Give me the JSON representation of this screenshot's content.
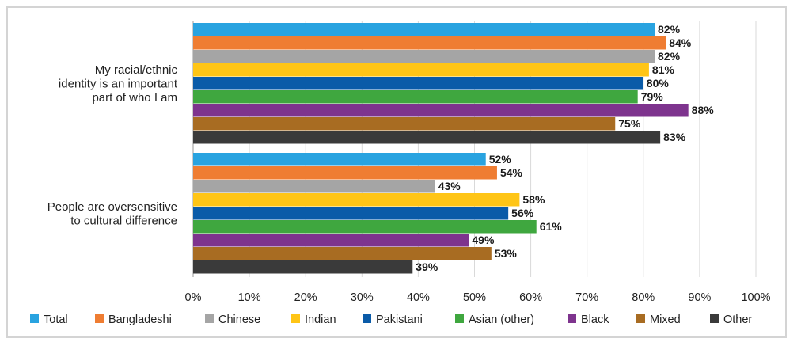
{
  "chart_data": {
    "type": "bar",
    "orientation": "horizontal",
    "categories": [
      [
        "My racial/ethnic",
        "identity is an important",
        "part of who I am"
      ],
      [
        "People are oversensitive",
        "to cultural difference"
      ]
    ],
    "series": [
      {
        "name": "Total",
        "color": "#29a3e0",
        "values": [
          82,
          52
        ]
      },
      {
        "name": "Bangladeshi",
        "color": "#ef7d32",
        "values": [
          84,
          54
        ]
      },
      {
        "name": "Chinese",
        "color": "#a5a5a5",
        "values": [
          82,
          43
        ]
      },
      {
        "name": "Indian",
        "color": "#ffc516",
        "values": [
          81,
          58
        ]
      },
      {
        "name": "Pakistani",
        "color": "#0a5ba8",
        "values": [
          80,
          56
        ]
      },
      {
        "name": "Asian (other)",
        "color": "#3fa73f",
        "values": [
          79,
          61
        ]
      },
      {
        "name": "Black",
        "color": "#7e348e",
        "values": [
          88,
          49
        ]
      },
      {
        "name": "Mixed",
        "color": "#a86c22",
        "values": [
          75,
          53
        ]
      },
      {
        "name": "Other",
        "color": "#3a3a3a",
        "values": [
          83,
          39
        ]
      }
    ],
    "value_suffix": "%",
    "xlim": [
      0,
      100
    ],
    "xticks": [
      0,
      10,
      20,
      30,
      40,
      50,
      60,
      70,
      80,
      90,
      100
    ],
    "tick_suffix": "%",
    "grid": true,
    "legend_position": "bottom",
    "title": "",
    "xlabel": "",
    "ylabel": ""
  }
}
